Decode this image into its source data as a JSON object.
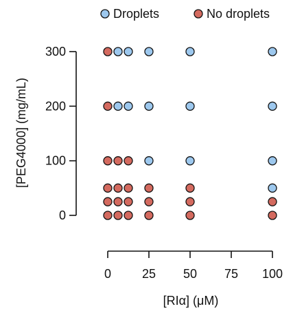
{
  "chart_data": {
    "type": "scatter",
    "xlabel": "[RIα] (μM)",
    "ylabel": "[PEG4000] (mg/mL)",
    "xlim": [
      0,
      100
    ],
    "ylim": [
      0,
      300
    ],
    "x_ticks": [
      0,
      25,
      50,
      75,
      100
    ],
    "y_ticks": [
      0,
      100,
      200,
      300
    ],
    "legend": {
      "position": "top",
      "entries": [
        {
          "label": "Droplets",
          "color": "#9dc8ee"
        },
        {
          "label": "No droplets",
          "color": "#d46a5f"
        }
      ]
    },
    "series": [
      {
        "name": "Droplets",
        "color": "#9dc8ee",
        "points": [
          {
            "x": 6.25,
            "y": 300
          },
          {
            "x": 12.5,
            "y": 300
          },
          {
            "x": 25,
            "y": 300
          },
          {
            "x": 50,
            "y": 300
          },
          {
            "x": 100,
            "y": 300
          },
          {
            "x": 6.25,
            "y": 200
          },
          {
            "x": 12.5,
            "y": 200
          },
          {
            "x": 25,
            "y": 200
          },
          {
            "x": 50,
            "y": 200
          },
          {
            "x": 100,
            "y": 200
          },
          {
            "x": 25,
            "y": 100
          },
          {
            "x": 50,
            "y": 100
          },
          {
            "x": 100,
            "y": 100
          },
          {
            "x": 100,
            "y": 50
          }
        ]
      },
      {
        "name": "No droplets",
        "color": "#d46a5f",
        "points": [
          {
            "x": 0,
            "y": 300
          },
          {
            "x": 0,
            "y": 200
          },
          {
            "x": 0,
            "y": 100
          },
          {
            "x": 6.25,
            "y": 100
          },
          {
            "x": 12.5,
            "y": 100
          },
          {
            "x": 0,
            "y": 50
          },
          {
            "x": 6.25,
            "y": 50
          },
          {
            "x": 12.5,
            "y": 50
          },
          {
            "x": 25,
            "y": 50
          },
          {
            "x": 50,
            "y": 50
          },
          {
            "x": 0,
            "y": 25
          },
          {
            "x": 6.25,
            "y": 25
          },
          {
            "x": 12.5,
            "y": 25
          },
          {
            "x": 25,
            "y": 25
          },
          {
            "x": 50,
            "y": 25
          },
          {
            "x": 100,
            "y": 25
          },
          {
            "x": 0,
            "y": 0
          },
          {
            "x": 6.25,
            "y": 0
          },
          {
            "x": 12.5,
            "y": 0
          },
          {
            "x": 25,
            "y": 0
          },
          {
            "x": 50,
            "y": 0
          },
          {
            "x": 100,
            "y": 0
          }
        ]
      }
    ]
  }
}
